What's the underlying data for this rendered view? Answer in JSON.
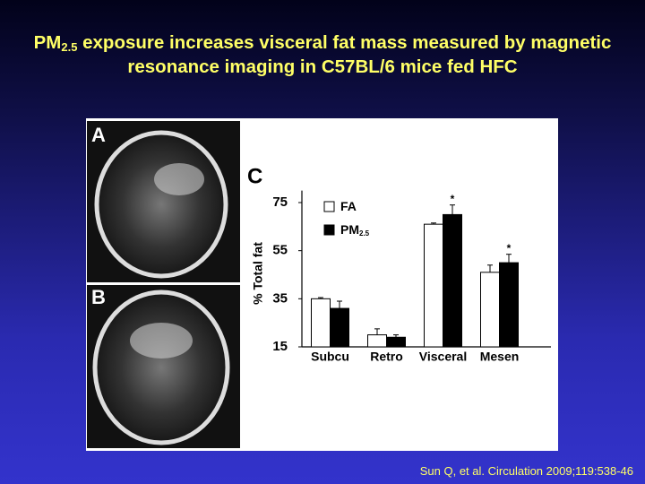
{
  "slide_title": {
    "main": "PM",
    "subscript": "2.5",
    "rest": " exposure increases visceral fat mass measured by magnetic resonance imaging in C57BL/6 mice fed HFC"
  },
  "citation": "Sun Q, et al. Circulation 2009;119:538-46",
  "image_panels": [
    "A",
    "B"
  ],
  "chart_data": {
    "type": "bar",
    "panel_label": "C",
    "y_label": "% Total fat",
    "categories": [
      "Subcu",
      "Retro",
      "Visceral",
      "Mesen"
    ],
    "series": [
      {
        "name": "FA",
        "color": "#ffffff",
        "values": [
          35,
          20,
          66,
          46
        ],
        "errors": [
          0.5,
          2.5,
          0.5,
          3
        ]
      },
      {
        "name": "PM",
        "name_subscript": "2.5",
        "color": "#000000",
        "values": [
          31,
          19,
          70,
          50
        ],
        "errors": [
          3,
          1,
          4,
          3.5
        ]
      }
    ],
    "annotations": [
      {
        "text": "*",
        "category": "Visceral"
      },
      {
        "text": "*",
        "category": "Mesen"
      }
    ],
    "ylim": [
      15,
      80
    ],
    "yticks": [
      15,
      35,
      55,
      75
    ],
    "grid": false,
    "legend": "upper-left"
  }
}
